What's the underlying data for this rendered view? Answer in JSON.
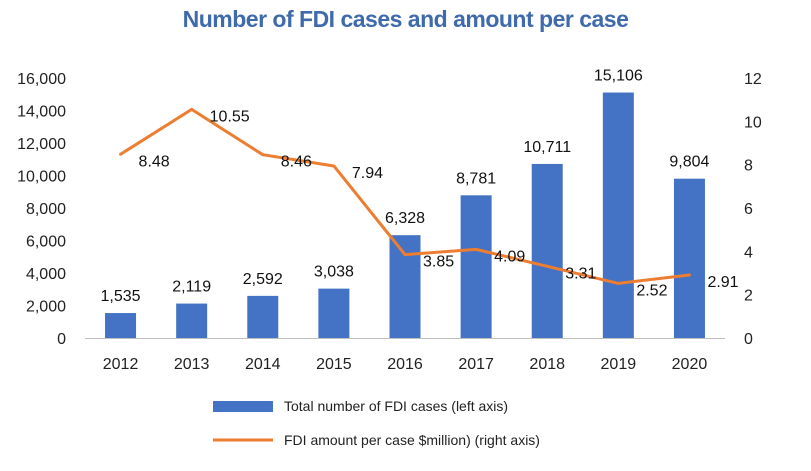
{
  "chart_data": {
    "type": "bar",
    "title": "Number of FDI cases and amount per case",
    "categories": [
      "2012",
      "2013",
      "2014",
      "2015",
      "2016",
      "2017",
      "2018",
      "2019",
      "2020"
    ],
    "series": [
      {
        "name": "Total number of FDI cases (left axis)",
        "type": "bar",
        "axis": "left",
        "color": "#4472c4",
        "values": [
          1535,
          2119,
          2592,
          3038,
          6328,
          8781,
          10711,
          15106,
          9804
        ],
        "labels": [
          "1,535",
          "2,119",
          "2,592",
          "3,038",
          "6,328",
          "8,781",
          "10,711",
          "15,106",
          "9,804"
        ]
      },
      {
        "name": "FDI amount per case $million) (right axis)",
        "type": "line",
        "axis": "right",
        "color": "#ed7d31",
        "values": [
          8.48,
          10.55,
          8.46,
          7.94,
          3.85,
          4.09,
          3.31,
          2.52,
          2.91
        ],
        "labels": [
          "8.48",
          "10.55",
          "8.46",
          "7.94",
          "3.85",
          "4.09",
          "3.31",
          "2.52",
          "2.91"
        ]
      }
    ],
    "y_left": {
      "ylim": [
        0,
        16000
      ],
      "ticks": [
        0,
        2000,
        4000,
        6000,
        8000,
        10000,
        12000,
        14000,
        16000
      ],
      "tick_labels": [
        "0",
        "2,000",
        "4,000",
        "6,000",
        "8,000",
        "10,000",
        "12,000",
        "14,000",
        "16,000"
      ]
    },
    "y_right": {
      "ylim": [
        0,
        12
      ],
      "ticks": [
        0,
        2,
        4,
        6,
        8,
        10,
        12
      ],
      "tick_labels": [
        "0",
        "2",
        "4",
        "6",
        "8",
        "10",
        "12"
      ]
    },
    "grid": false,
    "legend_position": "bottom"
  }
}
